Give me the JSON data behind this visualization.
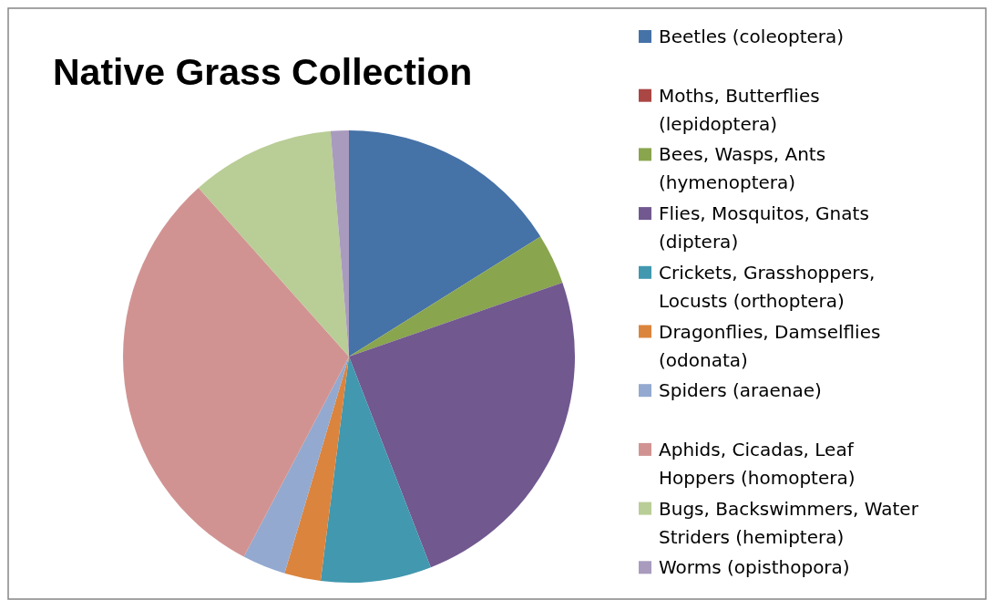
{
  "chart_data": {
    "type": "pie",
    "title": "Native Grass Collection",
    "categories": [
      "Beetles (coleoptera)",
      "Moths, Butterflies (lepidoptera)",
      "Bees, Wasps, Ants (hymenoptera)",
      "Flies, Mosquitos, Gnats (diptera)",
      "Crickets, Grasshoppers, Locusts (orthoptera)",
      "Dragonflies, Damselflies (odonata)",
      "Spiders (araenae)",
      "Aphids, Cicadas, Leaf Hoppers (homoptera)",
      "Bugs, Backswimmers, Water Striders (hemiptera)",
      "Worms (opisthopora)"
    ],
    "values": [
      16.1,
      0,
      3.6,
      24.4,
      7.9,
      2.6,
      3.1,
      30.7,
      10.3,
      1.3
    ],
    "colors": [
      "#4572a7",
      "#aa4643",
      "#89a54e",
      "#71588f",
      "#4198af",
      "#db843d",
      "#93a9cf",
      "#d19392",
      "#b9cd96",
      "#a99bbd"
    ],
    "legend": "right"
  }
}
